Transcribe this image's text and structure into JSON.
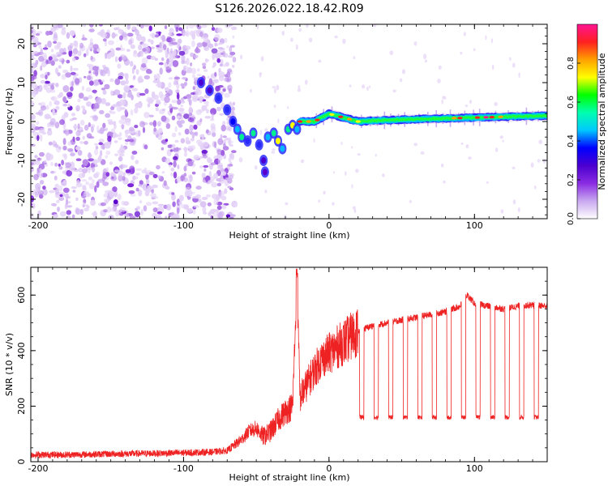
{
  "title": "S126.2026.022.18.42.R09",
  "chart_data": [
    {
      "type": "heatmap",
      "panel": "spectrogram",
      "xlabel": "Height of straight line (km)",
      "ylabel": "Frequency (Hz)",
      "xlim": [
        -205,
        150
      ],
      "ylim": [
        -25,
        25
      ],
      "xticks": [
        -200,
        -100,
        0,
        100
      ],
      "yticks": [
        -20,
        -10,
        0,
        10,
        20
      ],
      "colorbar": {
        "label": "Normalized spectral amplitude",
        "range": [
          0,
          1
        ],
        "ticks": [
          "0.0",
          "0.2",
          "0.4",
          "0.6",
          "0.8"
        ],
        "colors": [
          "#ffffff",
          "#c9a8f0",
          "#8a2be2",
          "#4b00d0",
          "#0000ff",
          "#00c8ff",
          "#00ffb0",
          "#00ff00",
          "#ffff00",
          "#ffa000",
          "#ff2020",
          "#ff1493"
        ]
      },
      "noise_region_x": [
        -205,
        -70
      ],
      "signal_trace": [
        {
          "x": -90,
          "f": 11
        },
        {
          "x": -80,
          "f": 8
        },
        {
          "x": -72,
          "f": 5
        },
        {
          "x": -65,
          "f": 0
        },
        {
          "x": -58,
          "f": -5
        },
        {
          "x": -50,
          "f": -4
        },
        {
          "x": -45,
          "f": -12
        },
        {
          "x": -40,
          "f": -5
        },
        {
          "x": -30,
          "f": -7
        },
        {
          "x": -25,
          "f": -2
        },
        {
          "x": -20,
          "f": 0
        },
        {
          "x": -10,
          "f": 0
        },
        {
          "x": 0,
          "f": 2
        },
        {
          "x": 20,
          "f": 0
        },
        {
          "x": 50,
          "f": 0.5
        },
        {
          "x": 100,
          "f": 1
        },
        {
          "x": 150,
          "f": 1.5
        }
      ]
    },
    {
      "type": "line",
      "panel": "snr",
      "xlabel": "Height of straight line (km)",
      "ylabel": "SNR (10 * v/v)",
      "xlim": [
        -205,
        150
      ],
      "ylim": [
        0,
        700
      ],
      "xticks": [
        -200,
        -100,
        0,
        100
      ],
      "yticks": [
        0,
        200,
        400,
        600
      ],
      "color": "#ee2222",
      "series": [
        {
          "name": "SNR",
          "x": [
            -205,
            -180,
            -150,
            -120,
            -100,
            -80,
            -70,
            -60,
            -55,
            -50,
            -45,
            -40,
            -35,
            -30,
            -25,
            -22,
            -20,
            -15,
            -10,
            -5,
            0,
            5,
            10,
            15,
            20,
            25,
            30,
            40,
            50,
            60,
            70,
            80,
            90,
            95,
            100,
            110,
            120,
            130,
            140,
            150
          ],
          "values": [
            25,
            25,
            28,
            30,
            32,
            35,
            40,
            80,
            110,
            120,
            90,
            110,
            150,
            180,
            200,
            660,
            230,
            280,
            330,
            370,
            390,
            410,
            430,
            450,
            470,
            480,
            490,
            500,
            510,
            520,
            530,
            540,
            560,
            600,
            570,
            560,
            550,
            560,
            565,
            560
          ]
        }
      ],
      "dropout_floor": 160,
      "dropout_start_x": 20,
      "dropout_period_km": 10,
      "noise_amplitude": 12
    }
  ]
}
